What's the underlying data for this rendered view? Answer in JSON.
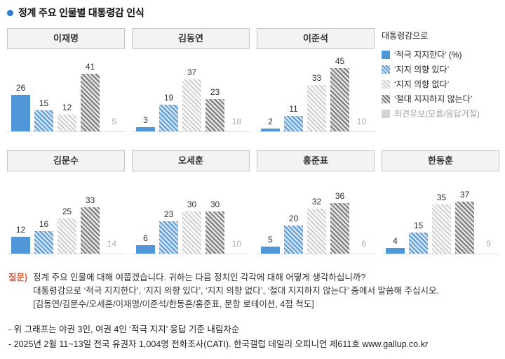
{
  "colors": {
    "accent_blue": "#4f97d6",
    "light_blue_hatch": "#d3e5f5",
    "gray_hatch_light": "#b5b5b5",
    "gray_hatch_dark": "#7b7b7b",
    "reserved_gray": "#aeaeae",
    "question_label_orange": "#e8572b"
  },
  "chart_data": {
    "type": "bar",
    "title": "정계 주요 인물별 대통령감 인식",
    "unit": "%",
    "ylim": [
      0,
      50
    ],
    "grid": false,
    "legend_position": "right-of-first-row",
    "legend_title": "대통령감으로",
    "legend": [
      "‘적극 지지한다’ (%)",
      "‘지지 의향 있다’",
      "‘지지 의향 없다’",
      "‘절대 지지하지 않는다’",
      "의견유보(모름/응답거절)"
    ],
    "series_names": [
      "적극 지지한다",
      "지지 의향 있다",
      "지지 의향 없다",
      "절대 지지하지 않는다",
      "의견유보(모름/응답거절)"
    ],
    "rows": [
      {
        "panels": [
          {
            "name": "이재명",
            "values": [
              26,
              15,
              12,
              41,
              5
            ]
          },
          {
            "name": "김동연",
            "values": [
              3,
              19,
              37,
              23,
              18
            ]
          },
          {
            "name": "이준석",
            "values": [
              2,
              11,
              33,
              45,
              10
            ]
          }
        ]
      },
      {
        "panels": [
          {
            "name": "김문수",
            "values": [
              12,
              16,
              25,
              33,
              14
            ]
          },
          {
            "name": "오세훈",
            "values": [
              6,
              23,
              30,
              30,
              10
            ]
          },
          {
            "name": "홍준표",
            "values": [
              5,
              20,
              32,
              36,
              6
            ]
          },
          {
            "name": "한동훈",
            "values": [
              4,
              15,
              35,
              37,
              9
            ]
          }
        ]
      }
    ]
  },
  "question": {
    "label": "질문)",
    "lines": [
      "정계 주요 인물에 대해 여쭙겠습니다. 귀하는 다음 정치인 각각에 대해 어떻게 생각하십니까?",
      "대통령감으로 ‘적극 지지한다’, ‘지지 의향 있다’, ‘지지 의향 없다’, ‘절대 지지하지 않는다’ 중에서 말씀해 주십시오.",
      "[김동연/김문수/오세훈/이재명/이준석/한동훈/홍준표, 문항 로테이션, 4점 척도]"
    ]
  },
  "footnotes": [
    "- 위 그래프는 야권 3인, 여권 4인 ‘적극 지지’ 응답 기준 내림차순",
    "- 2025년 2월 11~13일 전국 유권자 1,004명 전화조사(CATI). 한국갤럽 데일리 오피니언 제611호 www.gallup.co.kr"
  ]
}
